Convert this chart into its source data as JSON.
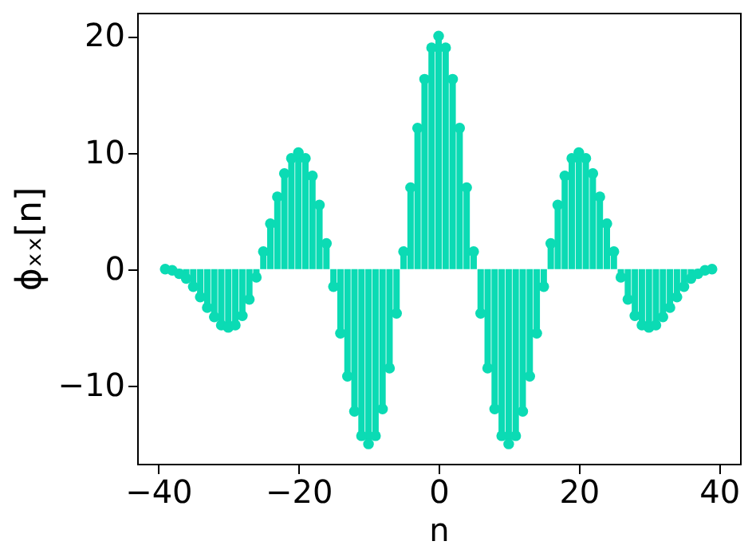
{
  "chart_data": {
    "type": "lollipop",
    "xlabel": "n",
    "ylabel": "ϕₓₓ[n]",
    "x": [
      -39,
      -38,
      -37,
      -36,
      -35,
      -34,
      -33,
      -32,
      -31,
      -30,
      -29,
      -28,
      -27,
      -26,
      -25,
      -24,
      -23,
      -22,
      -21,
      -20,
      -19,
      -18,
      -17,
      -16,
      -15,
      -14,
      -13,
      -12,
      -11,
      -10,
      -9,
      -8,
      -7,
      -6,
      -5,
      -4,
      -3,
      -2,
      -1,
      0,
      1,
      2,
      3,
      4,
      5,
      6,
      7,
      8,
      9,
      10,
      11,
      12,
      13,
      14,
      15,
      16,
      17,
      18,
      19,
      20,
      21,
      22,
      23,
      24,
      25,
      26,
      27,
      28,
      29,
      30,
      31,
      32,
      33,
      34,
      35,
      36,
      37,
      38,
      39
    ],
    "series": [
      {
        "color": "#0bdbb4",
        "values": [
          0,
          -0.1,
          -0.4,
          -0.8,
          -1.5,
          -2.4,
          -3.3,
          -4.1,
          -4.8,
          -5,
          -4.8,
          -4.0,
          -2.6,
          -0.7,
          1.5,
          3.9,
          6.2,
          8.2,
          9.5,
          10,
          9.5,
          8.0,
          5.5,
          2.2,
          -1.5,
          -5.5,
          -9.2,
          -12.2,
          -14.3,
          -15,
          -14.3,
          -12.0,
          -8.5,
          -3.8,
          1.5,
          7.0,
          12.1,
          16.3,
          19.0,
          20,
          19.0,
          16.3,
          12.1,
          7.0,
          1.5,
          -3.8,
          -8.5,
          -12.0,
          -14.3,
          -15,
          -14.3,
          -12.2,
          -9.2,
          -5.5,
          -1.5,
          2.2,
          5.5,
          8.0,
          9.5,
          10,
          9.5,
          8.2,
          6.2,
          3.9,
          1.5,
          -0.7,
          -2.6,
          -4.0,
          -4.8,
          -5,
          -4.8,
          -4.1,
          -3.3,
          -2.4,
          -1.5,
          -0.8,
          -0.4,
          -0.1,
          0
        ]
      }
    ],
    "marker": "circle",
    "xlim": [
      -43,
      43
    ],
    "xticks": [
      -40,
      -20,
      0,
      20,
      40
    ],
    "ylim": [
      -16.7,
      22
    ],
    "yticks": [
      -10,
      0,
      10,
      20
    ],
    "grid": false
  }
}
